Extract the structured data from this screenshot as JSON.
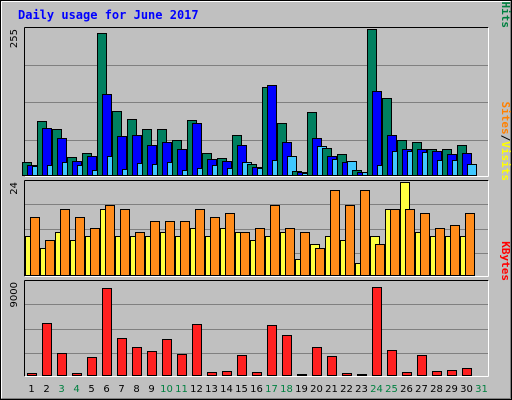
{
  "chart_data": {
    "type": "bar",
    "title": "Daily usage for June 2017",
    "days": [
      "1",
      "2",
      "3",
      "4",
      "5",
      "6",
      "7",
      "8",
      "9",
      "10",
      "11",
      "12",
      "13",
      "14",
      "15",
      "16",
      "17",
      "18",
      "19",
      "20",
      "21",
      "22",
      "23",
      "24",
      "25",
      "26",
      "27",
      "28",
      "29",
      "30",
      "31"
    ],
    "weekend_days": [
      "3",
      "4",
      "10",
      "11",
      "17",
      "18",
      "24",
      "25",
      "31"
    ],
    "panels": [
      {
        "id": "hits-panel",
        "ymax_label": "255",
        "ymax": 255,
        "side_labels": [
          {
            "text": "Hits",
            "color": "#008040"
          },
          {
            "text": "/",
            "color": "#000000"
          },
          {
            "text": "Files",
            "color": "#0000ff"
          },
          {
            "text": "/",
            "color": "#000000"
          },
          {
            "text": "Pages",
            "color": "#00b0ff"
          }
        ],
        "series": [
          {
            "key": "hits",
            "color": "#008060",
            "values": [
              22,
              95,
              81,
              32,
              38,
              248,
              112,
              97,
              81,
              81,
              61,
              96,
              38,
              30,
              70,
              20,
              153,
              90,
              7,
              110,
              48,
              36,
              8,
              255,
              135,
              62,
              57,
              46,
              46,
              52
            ]
          },
          {
            "key": "files",
            "color": "#0000ff",
            "values": [
              18,
              82,
              64,
              24,
              34,
              141,
              68,
              70,
              52,
              57,
              46,
              91,
              28,
              24,
              52,
              14,
              158,
              58,
              5,
              64,
              34,
              22,
              6,
              146,
              70,
              46,
              46,
              42,
              36,
              38
            ]
          },
          {
            "key": "pages",
            "color": "#40c8ff",
            "values": [
              16,
              18,
              23,
              17,
              9,
              33,
              10,
              21,
              20,
              23,
              9,
              13,
              18,
              13,
              23,
              12,
              26,
              33,
              4,
              51,
              28,
              25,
              5,
              17,
              42,
              42,
              40,
              26,
              26,
              20
            ]
          }
        ]
      },
      {
        "id": "visits-panel",
        "ymax_label": "24",
        "ymax": 24,
        "side_labels": [
          {
            "text": "Visits",
            "color": "#ffff00"
          },
          {
            "text": "/",
            "color": "#000000"
          },
          {
            "text": "Sites",
            "color": "#ff8000"
          }
        ],
        "series": [
          {
            "key": "visits",
            "color": "#ffff40",
            "values": [
              10,
              7,
              11,
              9,
              10,
              17,
              10,
              10,
              10,
              11,
              10,
              12,
              10,
              12,
              11,
              9,
              10,
              11,
              4,
              8,
              10,
              9,
              3,
              10,
              17,
              24,
              11,
              10,
              10,
              10
            ]
          },
          {
            "key": "sites",
            "color": "#ff8c1a",
            "values": [
              15,
              9,
              17,
              15,
              12,
              18,
              17,
              11,
              14,
              14,
              14,
              17,
              15,
              16,
              11,
              12,
              18,
              12,
              11,
              7,
              22,
              18,
              22,
              8,
              17,
              17,
              16,
              12,
              13,
              16
            ]
          }
        ]
      },
      {
        "id": "kbytes-panel",
        "ymax_label": "9000",
        "ymax": 9000,
        "side_labels": [
          {
            "text": "KBytes",
            "color": "#ff0000"
          }
        ],
        "series": [
          {
            "key": "kbytes",
            "color": "#ff2020",
            "values": [
              200,
              5050,
              2150,
              200,
              1700,
              8450,
              3550,
              2700,
              2300,
              3450,
              2000,
              4950,
              300,
              400,
              1950,
              250,
              4850,
              3850,
              50,
              2700,
              1850,
              150,
              50,
              8550,
              2450,
              300,
              1900,
              400,
              450,
              700
            ]
          }
        ]
      }
    ]
  }
}
